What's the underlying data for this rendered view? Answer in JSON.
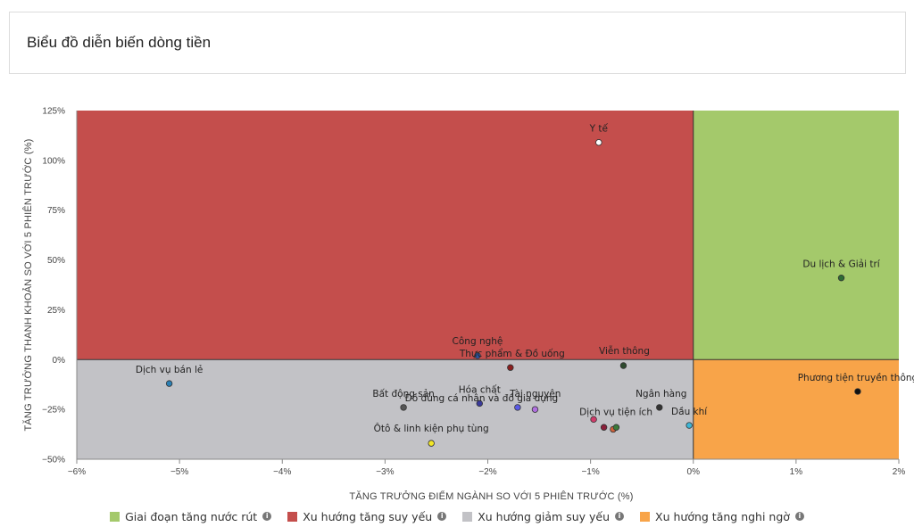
{
  "header": {
    "title": "Biểu đồ diễn biến dòng tiền"
  },
  "chart_data": {
    "type": "scatter",
    "xlabel": "TĂNG TRƯỞNG ĐIỂM NGÀNH SO VỚI 5 PHIÊN TRƯỚC (%)",
    "ylabel": "TĂNG TRƯỞNG THANH KHOẢN SO VỚI 5 PHIÊN TRƯỚC (%)",
    "xlim": [
      -6,
      2
    ],
    "ylim": [
      -50,
      125
    ],
    "x_ticks": [
      -6,
      -5,
      -4,
      -3,
      -2,
      -1,
      0,
      1,
      2
    ],
    "x_tick_labels": [
      "−6%",
      "−5%",
      "−4%",
      "−3%",
      "−2%",
      "−1%",
      "0%",
      "1%",
      "2%"
    ],
    "y_ticks": [
      -50,
      -25,
      0,
      25,
      50,
      75,
      100,
      125
    ],
    "y_tick_labels": [
      "−50%",
      "−25%",
      "0%",
      "25%",
      "50%",
      "75%",
      "100%",
      "125%"
    ],
    "quadrants": [
      {
        "name": "Giai đoạn tăng nước rút",
        "color": "#a4c96b",
        "x": [
          0,
          2
        ],
        "y": [
          0,
          125
        ]
      },
      {
        "name": "Xu hướng tăng suy yếu",
        "color": "#c44e4c",
        "x": [
          -6,
          0
        ],
        "y": [
          0,
          125
        ]
      },
      {
        "name": "Xu hướng giảm suy yếu",
        "color": "#c2c2c6",
        "x": [
          -6,
          0
        ],
        "y": [
          -50,
          0
        ]
      },
      {
        "name": "Xu hướng tăng nghi ngờ",
        "color": "#f8a449",
        "x": [
          0,
          2
        ],
        "y": [
          -50,
          0
        ]
      }
    ],
    "points": [
      {
        "name": "Y tế",
        "x": -0.92,
        "y": 109,
        "color": "#ffffff"
      },
      {
        "name": "Du lịch & Giải trí",
        "x": 1.44,
        "y": 41,
        "color": "#2e6b34"
      },
      {
        "name": "Công nghệ",
        "x": -2.1,
        "y": 2,
        "color": "#2a56a8"
      },
      {
        "name": "Thực phẩm & Đồ uống",
        "x": -1.78,
        "y": -4,
        "color": "#8b1f1f"
      },
      {
        "name": "Viễn thông",
        "x": -0.68,
        "y": -3,
        "color": "#2e4a2e"
      },
      {
        "name": "Dịch vụ bán lẻ",
        "x": -5.1,
        "y": -12,
        "color": "#2a7fb4"
      },
      {
        "name": "Phương tiện truyền thông",
        "x": 1.6,
        "y": -16,
        "color": "#111111"
      },
      {
        "name": "Bất động sản",
        "x": -2.82,
        "y": -24,
        "color": "#555555"
      },
      {
        "name": "Hóa chất",
        "x": -2.08,
        "y": -22,
        "color": "#3a3a9a"
      },
      {
        "name": "Tài nguyên",
        "x": -1.71,
        "y": -24,
        "color": "#5a5ae6"
      },
      {
        "name": "Ngân hàng",
        "x": -0.33,
        "y": -24,
        "color": "#333333"
      },
      {
        "name": "Dầu khí",
        "x": -0.04,
        "y": -33,
        "color": "#3eb6d6"
      },
      {
        "name": "Dịch vụ tiện ích",
        "x": -0.97,
        "y": -30,
        "color": "#d13b6a"
      },
      {
        "name": "Đồ dùng cá nhân và đồ gia dụng",
        "x": -1.54,
        "y": -25,
        "color": "#b070e0"
      },
      {
        "name": "Ôtô & linh kiện phụ tùng",
        "x": -2.55,
        "y": -42,
        "color": "#f2e626"
      },
      {
        "name": "",
        "x": -0.87,
        "y": -34,
        "color": "#8b1f3a"
      },
      {
        "name": "",
        "x": -0.78,
        "y": -35,
        "color": "#d0633c"
      },
      {
        "name": "",
        "x": -0.75,
        "y": -34,
        "color": "#3b7a3b"
      }
    ]
  },
  "legend": [
    {
      "label": "Giai đoạn tăng nước rút",
      "color": "#a4c96b",
      "icon": "info-icon"
    },
    {
      "label": "Xu hướng tăng suy yếu",
      "color": "#c44e4c",
      "icon": "info-icon"
    },
    {
      "label": "Xu hướng giảm suy yếu",
      "color": "#c2c2c6",
      "icon": "info-icon"
    },
    {
      "label": "Xu hướng tăng nghi ngờ",
      "color": "#f8a449",
      "icon": "info-icon"
    }
  ]
}
